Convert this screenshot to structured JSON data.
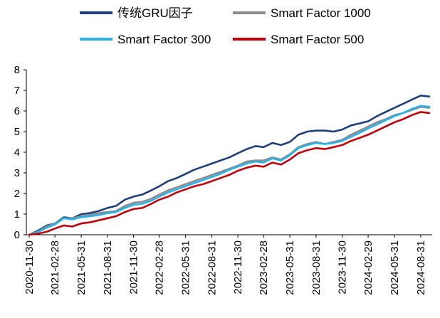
{
  "chart_data": {
    "type": "line",
    "title": "",
    "xlabel": "",
    "ylabel": "",
    "ylim": [
      0,
      8
    ],
    "yticks": [
      0,
      1,
      2,
      3,
      4,
      5,
      6,
      7,
      8
    ],
    "grid": false,
    "legend": "top",
    "x_tick_labels": [
      "2020-11-30",
      "2021-02-28",
      "2021-05-31",
      "2021-08-31",
      "2021-11-30",
      "2022-02-28",
      "2022-05-31",
      "2022-08-31",
      "2022-11-30",
      "2023-02-28",
      "2023-05-31",
      "2023-08-31",
      "2023-11-30",
      "2024-02-29",
      "2024-05-31",
      "2024-08-31"
    ],
    "x": [
      "2020-11-30",
      "2020-12-31",
      "2021-01-31",
      "2021-02-28",
      "2021-03-31",
      "2021-04-30",
      "2021-05-31",
      "2021-06-30",
      "2021-07-31",
      "2021-08-31",
      "2021-09-30",
      "2021-10-31",
      "2021-11-30",
      "2021-12-31",
      "2022-01-31",
      "2022-02-28",
      "2022-03-31",
      "2022-04-30",
      "2022-05-31",
      "2022-06-30",
      "2022-07-31",
      "2022-08-31",
      "2022-09-30",
      "2022-10-31",
      "2022-11-30",
      "2022-12-31",
      "2023-01-31",
      "2023-02-28",
      "2023-03-31",
      "2023-04-30",
      "2023-05-31",
      "2023-06-30",
      "2023-07-31",
      "2023-08-31",
      "2023-09-30",
      "2023-10-31",
      "2023-11-30",
      "2023-12-31",
      "2024-01-31",
      "2024-02-29",
      "2024-03-31",
      "2024-04-30",
      "2024-05-31",
      "2024-06-30",
      "2024-07-31",
      "2024-08-31",
      "2024-09-30"
    ],
    "series": [
      {
        "name": "传统GRU因子",
        "color": "#1F3F7A",
        "values": [
          0.0,
          0.2,
          0.45,
          0.55,
          0.85,
          0.8,
          1.0,
          1.05,
          1.15,
          1.3,
          1.4,
          1.7,
          1.85,
          1.95,
          2.15,
          2.35,
          2.6,
          2.75,
          2.95,
          3.15,
          3.3,
          3.45,
          3.6,
          3.75,
          3.95,
          4.15,
          4.3,
          4.25,
          4.45,
          4.35,
          4.5,
          4.85,
          5.0,
          5.05,
          5.05,
          5.0,
          5.1,
          5.3,
          5.4,
          5.5,
          5.75,
          5.95,
          6.15,
          6.35,
          6.55,
          6.75,
          6.7
        ]
      },
      {
        "name": "Smart Factor 1000",
        "color": "#8C8C8C",
        "values": [
          0.0,
          0.15,
          0.4,
          0.55,
          0.8,
          0.8,
          0.9,
          0.95,
          1.05,
          1.1,
          1.15,
          1.4,
          1.55,
          1.6,
          1.75,
          1.95,
          2.15,
          2.3,
          2.45,
          2.6,
          2.75,
          2.9,
          3.05,
          3.2,
          3.35,
          3.55,
          3.6,
          3.6,
          3.75,
          3.65,
          3.9,
          4.25,
          4.4,
          4.5,
          4.4,
          4.5,
          4.6,
          4.85,
          5.05,
          5.25,
          5.45,
          5.6,
          5.8,
          5.9,
          6.05,
          6.2,
          6.15
        ]
      },
      {
        "name": "Smart Factor 300",
        "color": "#2AB3E8",
        "values": [
          0.0,
          0.12,
          0.35,
          0.5,
          0.8,
          0.75,
          0.85,
          0.9,
          0.95,
          1.05,
          1.1,
          1.3,
          1.45,
          1.5,
          1.65,
          1.85,
          2.05,
          2.2,
          2.35,
          2.5,
          2.65,
          2.8,
          2.95,
          3.15,
          3.3,
          3.45,
          3.55,
          3.5,
          3.7,
          3.6,
          3.85,
          4.2,
          4.35,
          4.45,
          4.4,
          4.45,
          4.55,
          4.75,
          4.95,
          5.15,
          5.35,
          5.55,
          5.75,
          5.9,
          6.1,
          6.25,
          6.2
        ]
      },
      {
        "name": "Smart Factor 500",
        "color": "#C0000B",
        "values": [
          0.0,
          0.05,
          0.15,
          0.3,
          0.45,
          0.4,
          0.55,
          0.6,
          0.7,
          0.8,
          0.9,
          1.1,
          1.25,
          1.3,
          1.5,
          1.7,
          1.85,
          2.05,
          2.2,
          2.35,
          2.45,
          2.6,
          2.75,
          2.9,
          3.1,
          3.25,
          3.35,
          3.3,
          3.5,
          3.4,
          3.65,
          3.95,
          4.1,
          4.2,
          4.15,
          4.25,
          4.35,
          4.55,
          4.7,
          4.85,
          5.05,
          5.25,
          5.45,
          5.6,
          5.8,
          5.95,
          5.9
        ]
      }
    ]
  }
}
